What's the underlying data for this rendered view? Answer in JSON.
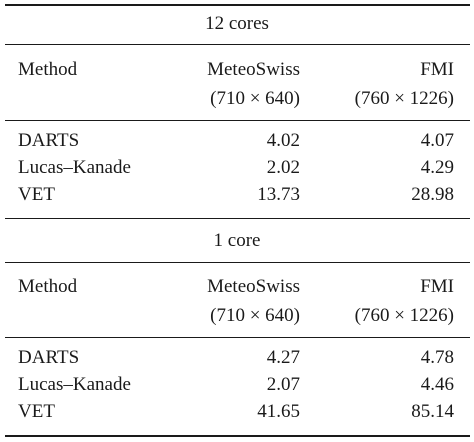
{
  "sections": [
    {
      "title": "12 cores",
      "header": {
        "method": "Method",
        "col1": {
          "name": "MeteoSwiss",
          "dims": "(710 × 640)"
        },
        "col2": {
          "name": "FMI",
          "dims": "(760 × 1226)"
        }
      },
      "rows": [
        {
          "method": "DARTS",
          "meteoswiss": "4.02",
          "fmi": "4.07"
        },
        {
          "method": "Lucas–Kanade",
          "meteoswiss": "2.02",
          "fmi": "4.29"
        },
        {
          "method": "VET",
          "meteoswiss": "13.73",
          "fmi": "28.98"
        }
      ]
    },
    {
      "title": "1 core",
      "header": {
        "method": "Method",
        "col1": {
          "name": "MeteoSwiss",
          "dims": "(710 × 640)"
        },
        "col2": {
          "name": "FMI",
          "dims": "(760 × 1226)"
        }
      },
      "rows": [
        {
          "method": "DARTS",
          "meteoswiss": "4.27",
          "fmi": "4.78"
        },
        {
          "method": "Lucas–Kanade",
          "meteoswiss": "2.07",
          "fmi": "4.46"
        },
        {
          "method": "VET",
          "meteoswiss": "41.65",
          "fmi": "85.14"
        }
      ]
    }
  ]
}
